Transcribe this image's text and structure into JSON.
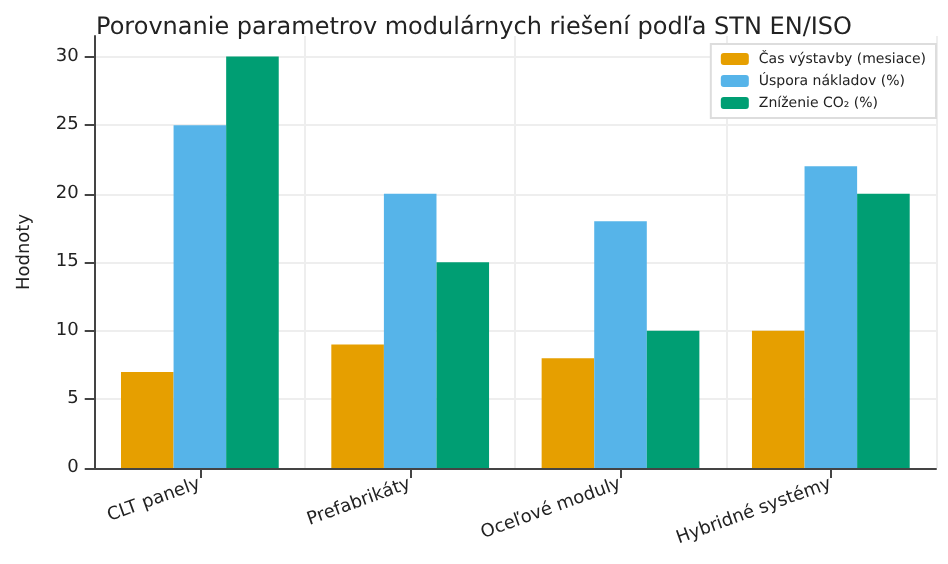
{
  "chart_data": {
    "type": "bar",
    "title": "Porovnanie parametrov modulárnych riešení podľa STN EN/ISO",
    "ylabel": "Hodnoty",
    "categories": [
      "CLT panely",
      "Prefabrikáty",
      "Oceľové moduly",
      "Hybridné systémy"
    ],
    "series": [
      {
        "name": "Čas výstavby (mesiace)",
        "color": "#e69f00",
        "values": [
          7,
          9,
          8,
          10
        ]
      },
      {
        "name": "Úspora nákladov (%)",
        "color": "#56b4e9",
        "values": [
          25,
          20,
          18,
          22
        ]
      },
      {
        "name": "Zníženie CO₂ (%)",
        "color": "#009e73",
        "values": [
          30,
          15,
          10,
          20
        ]
      }
    ],
    "ylim": [
      0,
      31.5
    ],
    "yticks": [
      0,
      5,
      10,
      15,
      20,
      25,
      30
    ],
    "grid": true,
    "legend": "top right"
  }
}
